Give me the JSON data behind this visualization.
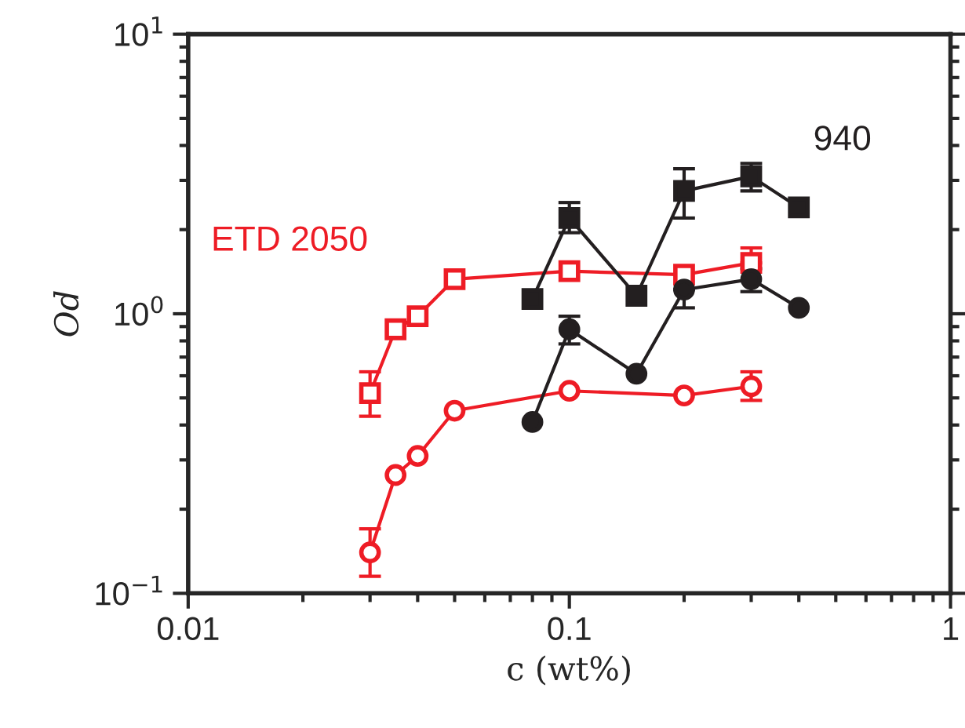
{
  "chart_data": {
    "type": "line",
    "xlabel": "c (wt%)",
    "ylabel": "Od",
    "log": "xy",
    "grid": false,
    "legend": false,
    "xlim": [
      0.01,
      1
    ],
    "xticks": [
      0.01,
      0.1,
      1
    ],
    "ylim": [
      0.1,
      10
    ],
    "yticks": [
      {
        "value": 0.1,
        "label": "10$^{−1}$"
      },
      {
        "value": 1,
        "label": "10$^{0}$"
      },
      {
        "value": 10,
        "label": "10$^{1}$"
      }
    ],
    "annotations": [
      "ETD 2050",
      "940"
    ],
    "series": [
      {
        "color": "#ee1c25",
        "marker": "square",
        "x": [
          0.03,
          0.035,
          0.04,
          0.05,
          0.1,
          0.2,
          0.3
        ],
        "values": [
          0.52,
          0.88,
          0.98,
          1.33,
          1.42,
          1.38,
          1.52
        ],
        "errors": [
          [
            0.43,
            0.62
          ],
          null,
          null,
          null,
          null,
          null,
          [
            1.52,
            1.72
          ]
        ]
      },
      {
        "color": "#231f20",
        "marker": "square",
        "x": [
          0.08,
          0.1,
          0.15,
          0.2,
          0.3,
          0.4
        ],
        "values": [
          1.13,
          2.2,
          1.16,
          2.75,
          3.1,
          2.4
        ],
        "errors": [
          null,
          [
            1.95,
            2.5
          ],
          null,
          [
            2.2,
            3.3
          ],
          [
            2.75,
            3.45
          ],
          null
        ]
      },
      {
        "color": "#ee1c25",
        "marker": "circle",
        "x": [
          0.03,
          0.035,
          0.04,
          0.05,
          0.1,
          0.2,
          0.3
        ],
        "values": [
          0.14,
          0.265,
          0.31,
          0.45,
          0.53,
          0.51,
          0.55
        ],
        "errors": [
          [
            0.115,
            0.17
          ],
          null,
          null,
          null,
          null,
          null,
          [
            0.49,
            0.62
          ]
        ]
      },
      {
        "color": "#231f20",
        "marker": "circle",
        "x": [
          0.08,
          0.1,
          0.15,
          0.2,
          0.3,
          0.4
        ],
        "values": [
          0.41,
          0.88,
          0.61,
          1.22,
          1.33,
          1.05
        ],
        "errors": [
          null,
          [
            0.78,
            0.98
          ],
          null,
          [
            1.05,
            1.22
          ],
          [
            1.2,
            1.45
          ],
          null
        ]
      }
    ]
  }
}
